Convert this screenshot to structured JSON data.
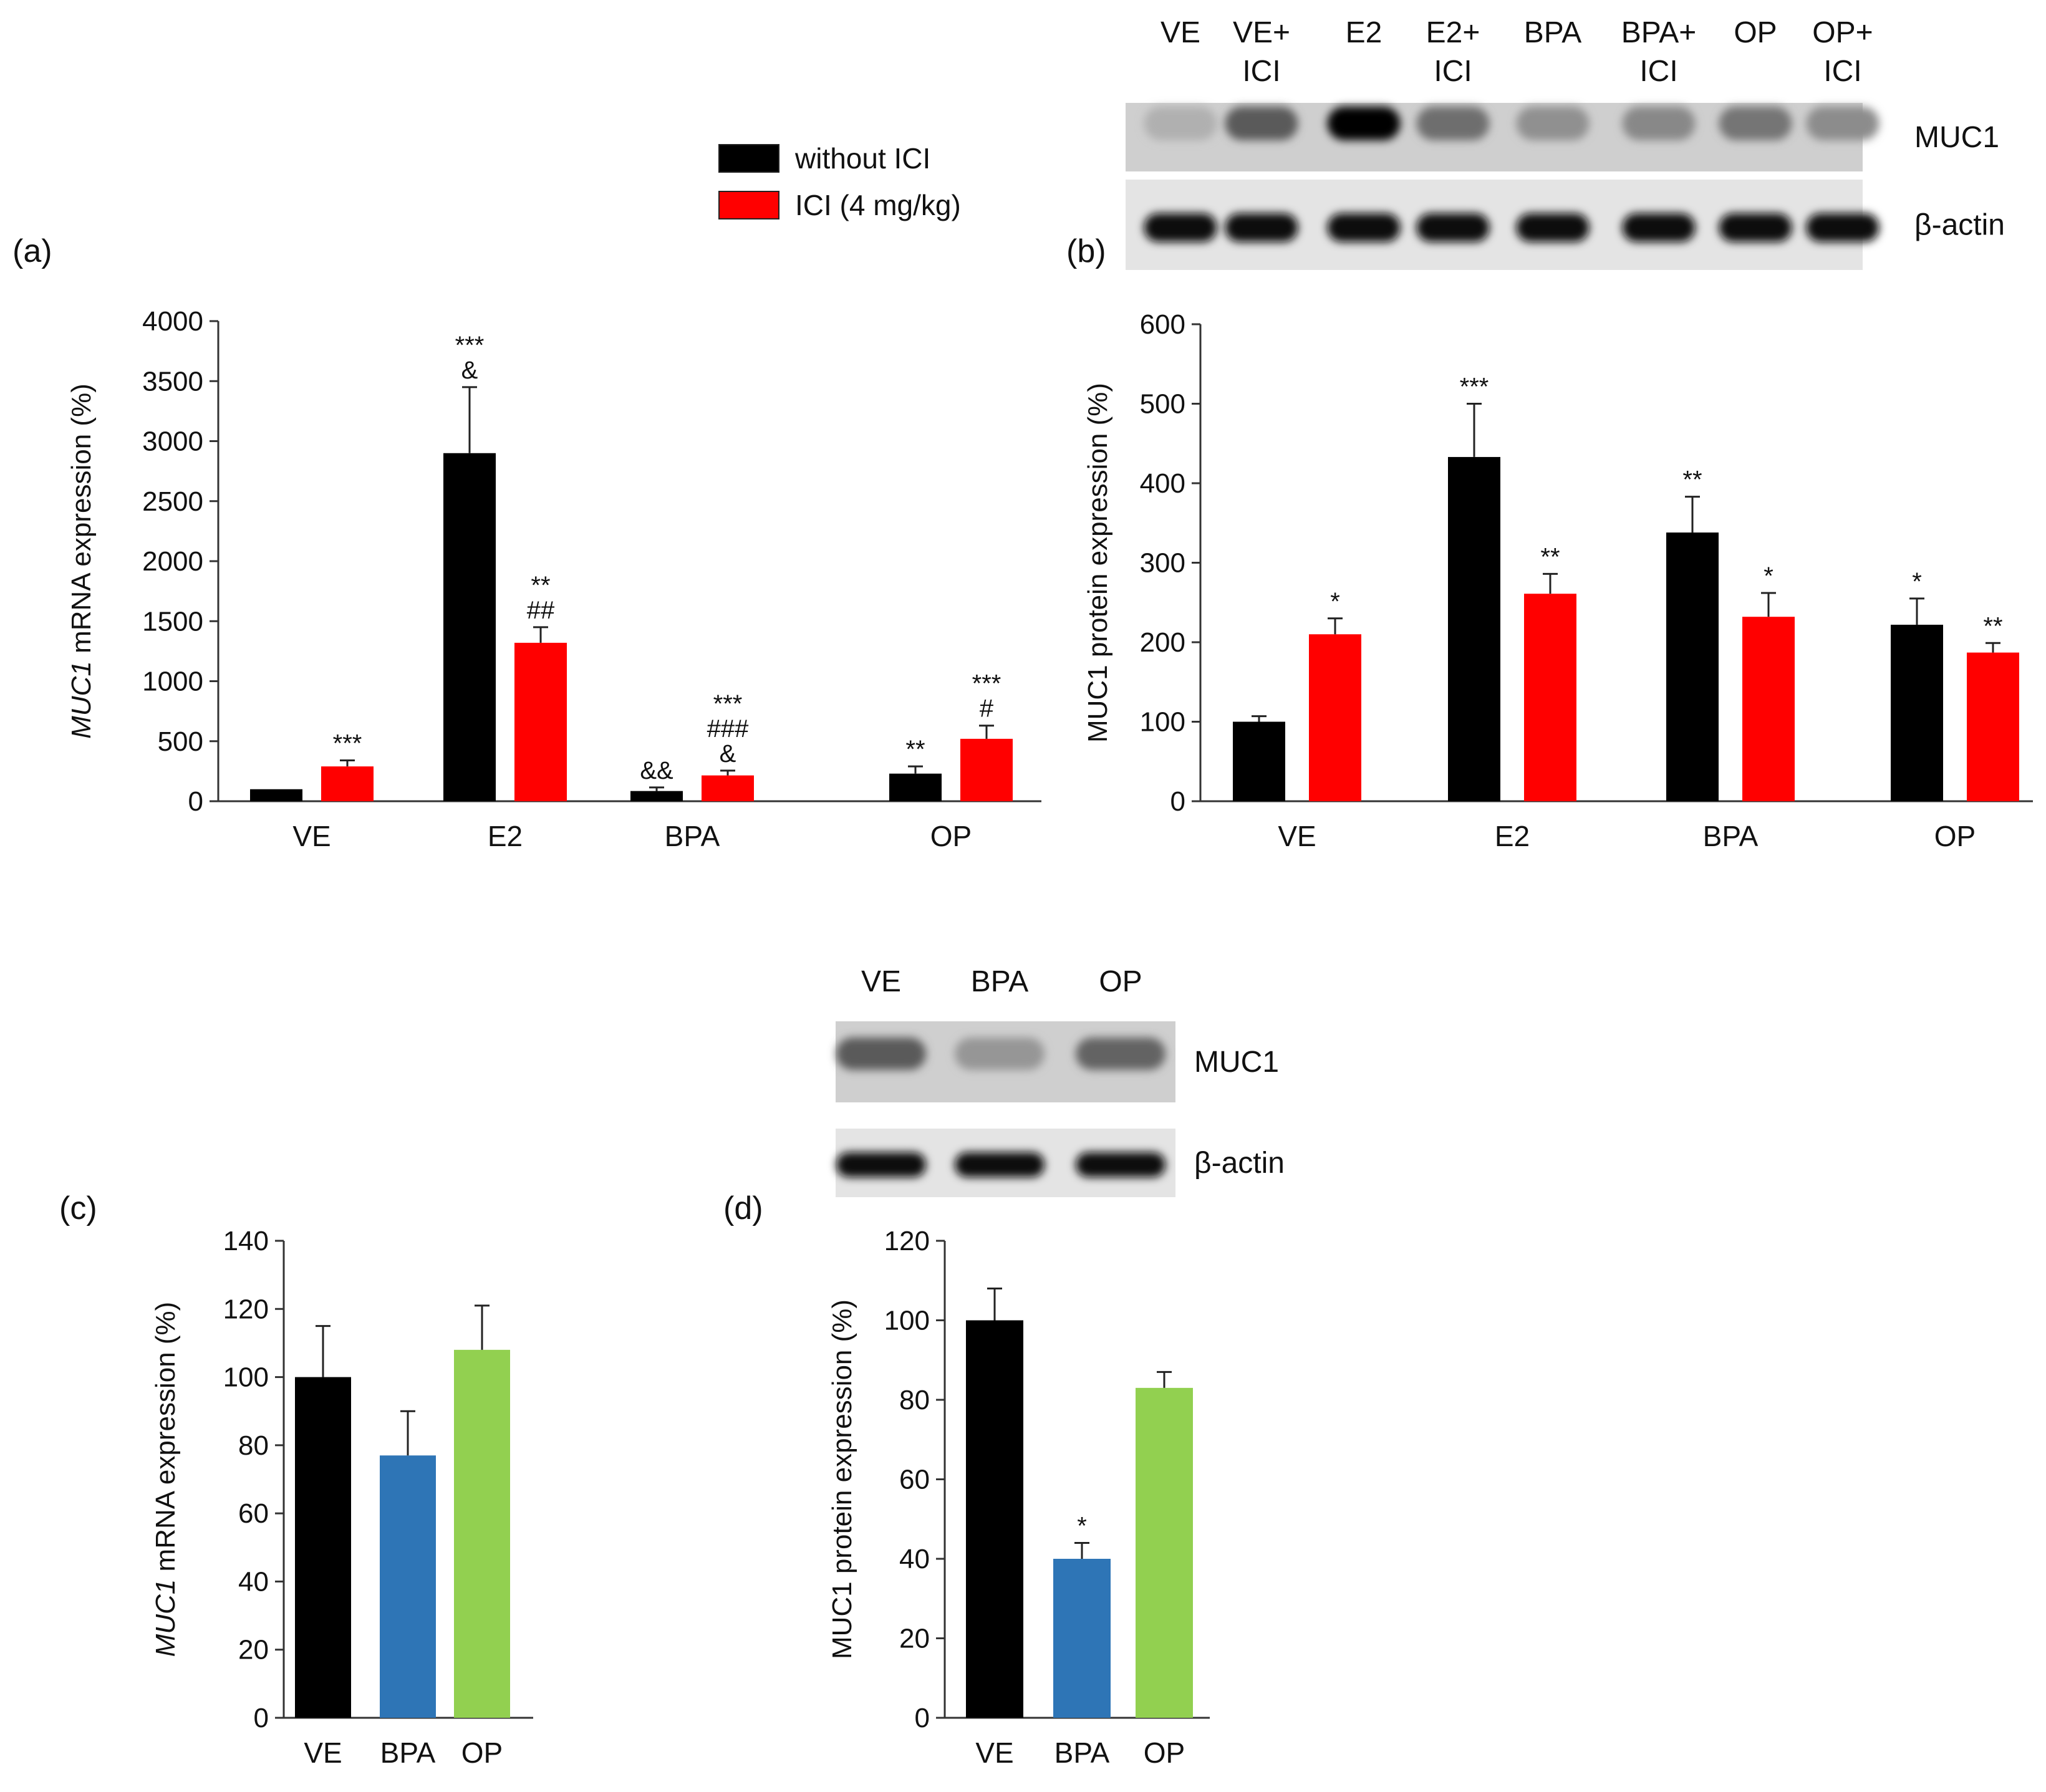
{
  "colors": {
    "black": "#000000",
    "red": "#ff0000",
    "blue": "#2e75b6",
    "green": "#92d050"
  },
  "legend": {
    "entries": [
      {
        "label": "without ICI",
        "color": "#000000"
      },
      {
        "label": "ICI (4 mg/kg)",
        "color": "#ff0000"
      }
    ]
  },
  "blots": [
    {
      "id": "b",
      "lanes": [
        "VE",
        "VE+\nICI",
        "E2",
        "E2+\nICI",
        "BPA",
        "BPA+\nICI",
        "OP",
        "OP+\nICI"
      ],
      "rows": [
        {
          "label": "MUC1",
          "intensity": [
            0.12,
            0.55,
            1.0,
            0.45,
            0.28,
            0.32,
            0.42,
            0.3
          ]
        },
        {
          "label": "β-actin",
          "intensity": [
            0.95,
            0.95,
            0.95,
            0.95,
            0.95,
            0.95,
            0.95,
            0.95
          ]
        }
      ]
    },
    {
      "id": "d",
      "lanes": [
        "VE",
        "BPA",
        "OP"
      ],
      "rows": [
        {
          "label": "MUC1",
          "intensity": [
            0.55,
            0.25,
            0.5
          ]
        },
        {
          "label": "β-actin",
          "intensity": [
            0.95,
            0.95,
            0.95
          ]
        }
      ]
    }
  ],
  "chart_data": [
    {
      "panel": "(a)",
      "type": "bar",
      "categories": [
        "VE",
        "E2",
        "BPA",
        "OP"
      ],
      "ylabel_italic": "MUC1",
      "ylabel": " mRNA expression (%)",
      "ylim": [
        0,
        4000
      ],
      "yticks": [
        0,
        500,
        1000,
        1500,
        2000,
        2500,
        3000,
        3500,
        4000
      ],
      "series": [
        {
          "name": "without ICI",
          "color": "#000000",
          "values": [
            100,
            2900,
            85,
            230
          ],
          "errors": [
            0,
            550,
            30,
            60
          ],
          "annotations": [
            [],
            [
              "***",
              "&"
            ],
            [
              "&&"
            ],
            [
              "**"
            ]
          ]
        },
        {
          "name": "ICI (4 mg/kg)",
          "color": "#ff0000",
          "values": [
            290,
            1320,
            215,
            520
          ],
          "errors": [
            50,
            130,
            40,
            110
          ],
          "annotations": [
            [
              "***"
            ],
            [
              "**",
              "##"
            ],
            [
              "***",
              "###",
              "&"
            ],
            [
              "***",
              "#"
            ]
          ]
        }
      ]
    },
    {
      "panel": "(b)",
      "type": "bar",
      "categories": [
        "VE",
        "E2",
        "BPA",
        "OP"
      ],
      "ylabel": "MUC1 protein expression (%)",
      "ylim": [
        0,
        600
      ],
      "yticks": [
        0,
        100,
        200,
        300,
        400,
        500,
        600
      ],
      "series": [
        {
          "name": "without ICI",
          "color": "#000000",
          "values": [
            100,
            433,
            338,
            222
          ],
          "errors": [
            7,
            67,
            45,
            33
          ],
          "annotations": [
            [],
            [
              "***"
            ],
            [
              "**"
            ],
            [
              "*"
            ]
          ]
        },
        {
          "name": "ICI (4 mg/kg)",
          "color": "#ff0000",
          "values": [
            210,
            261,
            232,
            187
          ],
          "errors": [
            20,
            25,
            30,
            12
          ],
          "annotations": [
            [
              "*"
            ],
            [
              "**"
            ],
            [
              "*"
            ],
            [
              "**"
            ]
          ]
        }
      ]
    },
    {
      "panel": "(c)",
      "type": "bar",
      "categories": [
        "VE",
        "BPA",
        "OP"
      ],
      "ylabel_italic": "MUC1",
      "ylabel": " mRNA expression (%)",
      "ylim": [
        0,
        140
      ],
      "yticks": [
        0,
        20,
        40,
        60,
        80,
        100,
        120,
        140
      ],
      "values": [
        100,
        77,
        108
      ],
      "errors": [
        15,
        13,
        13
      ],
      "colors": [
        "#000000",
        "#2e75b6",
        "#92d050"
      ],
      "annotations": [
        [],
        [],
        []
      ]
    },
    {
      "panel": "(d)",
      "type": "bar",
      "categories": [
        "VE",
        "BPA",
        "OP"
      ],
      "ylabel": "MUC1 protein expression (%)",
      "ylim": [
        0,
        120
      ],
      "yticks": [
        0,
        20,
        40,
        60,
        80,
        100,
        120
      ],
      "values": [
        100,
        40,
        83
      ],
      "errors": [
        8,
        4,
        4
      ],
      "colors": [
        "#000000",
        "#2e75b6",
        "#92d050"
      ],
      "annotations": [
        [],
        [
          "*"
        ],
        []
      ]
    }
  ]
}
